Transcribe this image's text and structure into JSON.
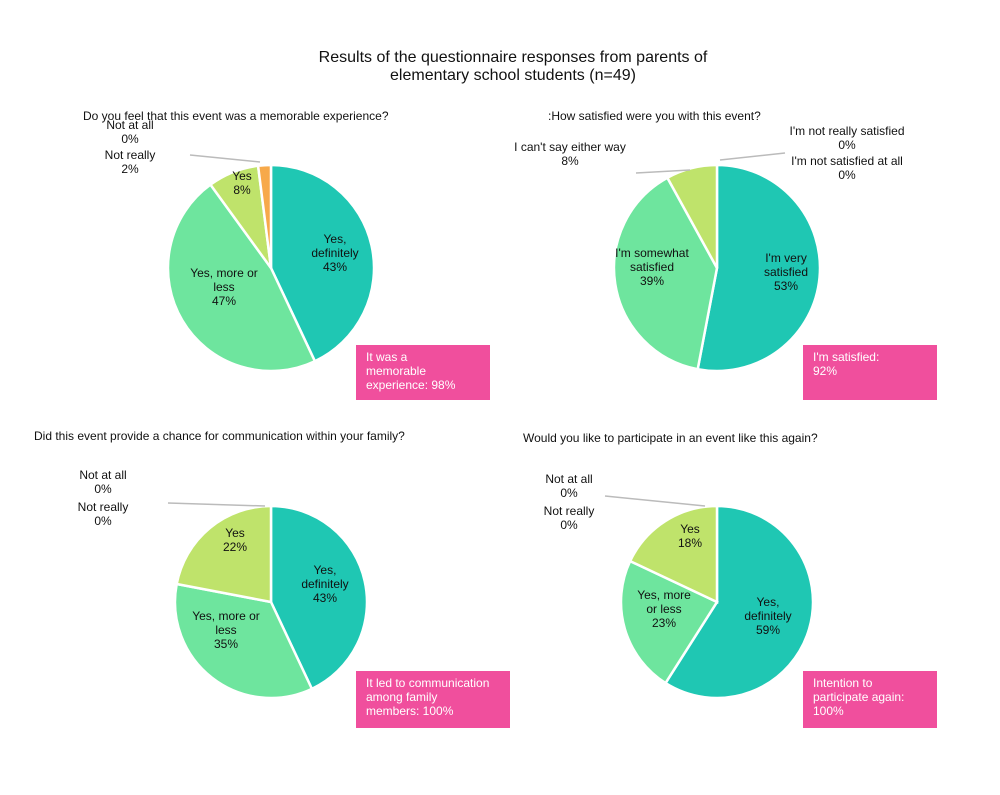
{
  "title_lines": [
    "Results of the questionnaire responses from parents of",
    "elementary school students (n=49)"
  ],
  "colors": {
    "dark_teal": "#1fc7b3",
    "light_green": "#6ee59e",
    "yellow_green": "#bfe36b",
    "orange": "#f7a94a",
    "callout_pink": "#f04f9d"
  },
  "chart_data": [
    {
      "type": "pie",
      "title": "Do you feel that this event was a memorable experience?",
      "slices": [
        {
          "label_lines": [
            "Yes,",
            "definitely"
          ],
          "pct_text": "43%",
          "value": 43,
          "color": "#1fc7b3"
        },
        {
          "label_lines": [
            "Yes, more or",
            "less"
          ],
          "pct_text": "47%",
          "value": 47,
          "color": "#6ee59e"
        },
        {
          "label_lines": [
            "Yes"
          ],
          "pct_text": "8%",
          "value": 8,
          "color": "#bfe36b"
        },
        {
          "label_lines": [
            "Not really"
          ],
          "pct_text": "2%",
          "value": 2,
          "color": "#f7a94a"
        },
        {
          "label_lines": [
            "Not at all"
          ],
          "pct_text": "0%",
          "value": 0,
          "color": "#e07b39"
        }
      ],
      "callout_lines": [
        "It was a",
        "memorable",
        "experience: 98%"
      ]
    },
    {
      "type": "pie",
      "title": ":How satisfied were you with this event?",
      "slices": [
        {
          "label_lines": [
            "I'm very",
            "satisfied"
          ],
          "pct_text": "53%",
          "value": 53,
          "color": "#1fc7b3"
        },
        {
          "label_lines": [
            "I'm somewhat",
            "satisfied"
          ],
          "pct_text": "39%",
          "value": 39,
          "color": "#6ee59e"
        },
        {
          "label_lines": [
            "I can't say either way"
          ],
          "pct_text": "8%",
          "value": 8,
          "color": "#bfe36b"
        },
        {
          "label_lines": [
            "I'm not satisfied at all"
          ],
          "pct_text": "0%",
          "value": 0,
          "color": "#f7a94a"
        },
        {
          "label_lines": [
            "I'm not really satisfied"
          ],
          "pct_text": "0%",
          "value": 0,
          "color": "#e07b39"
        }
      ],
      "callout_lines": [
        "I'm satisfied:",
        "92%"
      ]
    },
    {
      "type": "pie",
      "title": "Did this event provide a chance for communication within your family?",
      "slices": [
        {
          "label_lines": [
            "Yes,",
            "definitely"
          ],
          "pct_text": "43%",
          "value": 43,
          "color": "#1fc7b3"
        },
        {
          "label_lines": [
            "Yes, more or",
            "less"
          ],
          "pct_text": "35%",
          "value": 35,
          "color": "#6ee59e"
        },
        {
          "label_lines": [
            "Yes"
          ],
          "pct_text": "22%",
          "value": 22,
          "color": "#bfe36b"
        },
        {
          "label_lines": [
            "Not really"
          ],
          "pct_text": "0%",
          "value": 0,
          "color": "#f7a94a"
        },
        {
          "label_lines": [
            "Not at all"
          ],
          "pct_text": "0%",
          "value": 0,
          "color": "#e07b39"
        }
      ],
      "callout_lines": [
        "It led to communication",
        "among family",
        "members: 100%"
      ]
    },
    {
      "type": "pie",
      "title": "Would you like to participate in an event like this again?",
      "slices": [
        {
          "label_lines": [
            "Yes,",
            "definitely"
          ],
          "pct_text": "59%",
          "value": 59,
          "color": "#1fc7b3"
        },
        {
          "label_lines": [
            "Yes, more",
            "or less"
          ],
          "pct_text": "23%",
          "value": 23,
          "color": "#6ee59e"
        },
        {
          "label_lines": [
            "Yes"
          ],
          "pct_text": "18%",
          "value": 18,
          "color": "#bfe36b"
        },
        {
          "label_lines": [
            "Not really"
          ],
          "pct_text": "0%",
          "value": 0,
          "color": "#f7a94a"
        },
        {
          "label_lines": [
            "Not at all"
          ],
          "pct_text": "0%",
          "value": 0,
          "color": "#e07b39"
        }
      ],
      "callout_lines": [
        "Intention to",
        "participate again:",
        "100%"
      ]
    }
  ]
}
